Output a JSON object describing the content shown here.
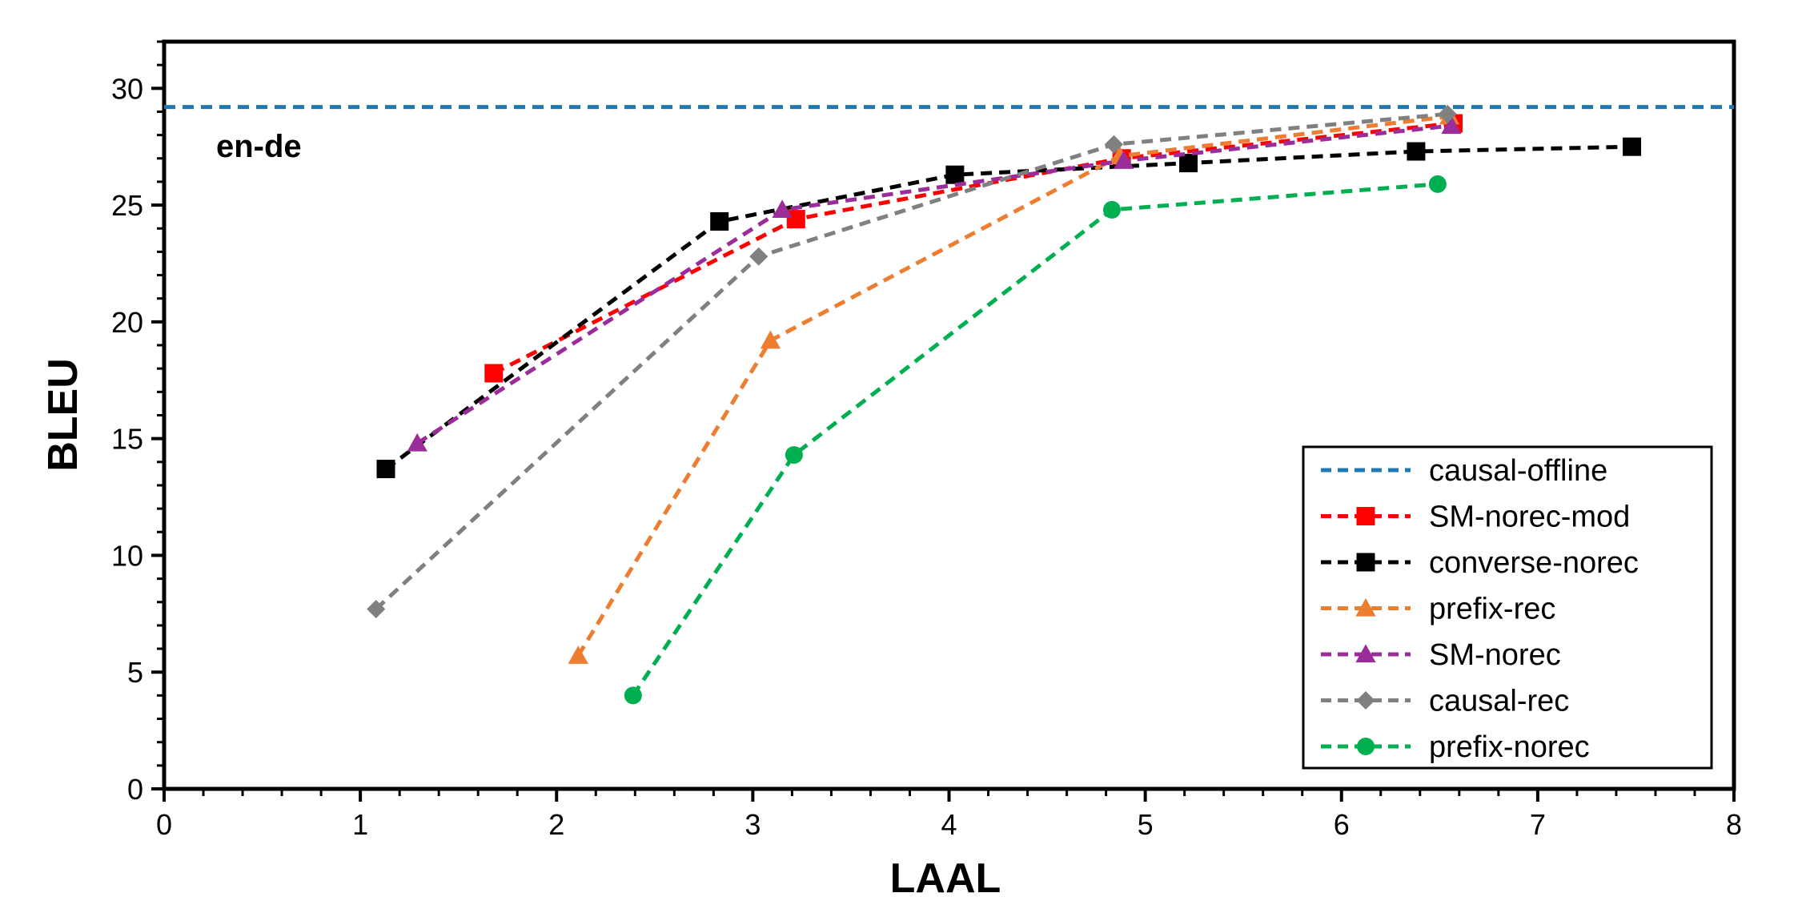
{
  "chart_data": {
    "type": "line",
    "annotation": "en-de",
    "xlabel": "LAAL",
    "ylabel": "BLEU",
    "xlim": [
      0,
      8
    ],
    "ylim": [
      0,
      32
    ],
    "xticks": [
      0,
      1,
      2,
      3,
      4,
      5,
      6,
      7,
      8
    ],
    "yticks": [
      0,
      5,
      10,
      15,
      20,
      25,
      30
    ],
    "grid": false,
    "legend_position": "bottom-right",
    "series": [
      {
        "name": "causal-offline",
        "color": "#1f77b4",
        "marker": "none",
        "hline": 29.2,
        "x": [],
        "y": []
      },
      {
        "name": "SM-norec-mod",
        "color": "#ff0000",
        "marker": "square",
        "x": [
          1.68,
          3.22,
          4.88,
          6.57
        ],
        "y": [
          17.8,
          24.4,
          27.0,
          28.5
        ]
      },
      {
        "name": "converse-norec",
        "color": "#000000",
        "marker": "square",
        "x": [
          1.13,
          2.83,
          4.03,
          5.22,
          6.38,
          7.48
        ],
        "y": [
          13.7,
          24.3,
          26.3,
          26.8,
          27.3,
          27.5
        ]
      },
      {
        "name": "prefix-rec",
        "color": "#ed7d31",
        "marker": "triangle",
        "x": [
          2.11,
          3.09,
          4.87,
          6.55
        ],
        "y": [
          5.7,
          19.2,
          27.1,
          28.8
        ]
      },
      {
        "name": "SM-norec",
        "color": "#9b2d9b",
        "marker": "triangle",
        "x": [
          1.29,
          3.15,
          4.89,
          6.56
        ],
        "y": [
          14.8,
          24.8,
          26.9,
          28.4
        ]
      },
      {
        "name": "causal-rec",
        "color": "#808080",
        "marker": "diamond",
        "x": [
          1.08,
          3.03,
          4.84,
          6.54
        ],
        "y": [
          7.7,
          22.8,
          27.6,
          28.9
        ]
      },
      {
        "name": "prefix-norec",
        "color": "#00b050",
        "marker": "circle",
        "x": [
          2.39,
          3.21,
          4.83,
          6.49
        ],
        "y": [
          4.0,
          14.3,
          24.8,
          25.9
        ]
      }
    ]
  }
}
